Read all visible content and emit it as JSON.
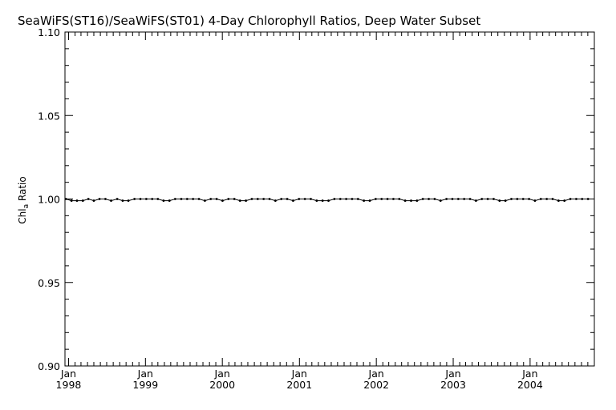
{
  "chart_data": {
    "type": "line",
    "title": "SeaWiFS(ST16)/SeaWiFS(ST01) 4-Day Chlorophyll Ratios, Deep Water Subset",
    "xlabel": "",
    "ylabel": "Chl",
    "ylabel_subscript": "a",
    "ylabel_suffix": " Ratio",
    "ylim": [
      0.9,
      1.1
    ],
    "yticks": [
      "0.90",
      "0.95",
      "1.00",
      "1.05",
      "1.10"
    ],
    "xlim": [
      "1997-12-15",
      "2004-11-01"
    ],
    "xticks": [
      {
        "month": "Jan",
        "year": "1998",
        "date": "1998-01-01"
      },
      {
        "month": "Jan",
        "year": "1999",
        "date": "1999-01-01"
      },
      {
        "month": "Jan",
        "year": "2000",
        "date": "2000-01-01"
      },
      {
        "month": "Jan",
        "year": "2001",
        "date": "2001-01-01"
      },
      {
        "month": "Jan",
        "year": "2002",
        "date": "2002-01-01"
      },
      {
        "month": "Jan",
        "year": "2003",
        "date": "2003-01-01"
      },
      {
        "month": "Jan",
        "year": "2004",
        "date": "2004-01-01"
      }
    ],
    "grid": false,
    "series": [
      {
        "x": [
          "1997-12-20",
          "1998-01-15",
          "1998-02-10",
          "1998-03-10",
          "1998-04-05",
          "1998-05-01",
          "1998-05-28",
          "1998-06-25",
          "1998-07-22",
          "1998-08-20",
          "1998-09-15",
          "1998-10-12",
          "1998-11-10",
          "1998-12-08",
          "1999-01-05",
          "1999-02-02",
          "1999-03-01",
          "1999-03-28",
          "1999-04-25",
          "1999-05-22",
          "1999-06-20",
          "1999-07-18",
          "1999-08-15",
          "1999-09-12",
          "1999-10-10",
          "1999-11-07",
          "1999-12-05",
          "2000-01-02",
          "2000-01-30",
          "2000-02-27",
          "2000-03-25",
          "2000-04-22",
          "2000-05-20",
          "2000-06-17",
          "2000-07-15",
          "2000-08-12",
          "2000-09-09",
          "2000-10-07",
          "2000-11-04",
          "2000-12-02",
          "2000-12-30",
          "2001-01-27",
          "2001-02-24",
          "2001-03-24",
          "2001-04-21",
          "2001-05-19",
          "2001-06-16",
          "2001-07-14",
          "2001-08-11",
          "2001-09-08",
          "2001-10-06",
          "2001-11-03",
          "2001-12-01",
          "2001-12-29",
          "2002-01-26",
          "2002-02-23",
          "2002-03-23",
          "2002-04-20",
          "2002-05-18",
          "2002-06-15",
          "2002-07-13",
          "2002-08-10",
          "2002-09-07",
          "2002-10-05",
          "2002-11-02",
          "2002-11-30",
          "2002-12-28",
          "2003-01-25",
          "2003-02-22",
          "2003-03-22",
          "2003-04-19",
          "2003-05-17",
          "2003-06-14",
          "2003-07-12",
          "2003-08-09",
          "2003-09-06",
          "2003-10-04",
          "2003-11-01",
          "2003-11-29",
          "2003-12-27",
          "2004-01-24",
          "2004-02-21",
          "2004-03-20",
          "2004-04-17",
          "2004-05-15",
          "2004-06-12",
          "2004-07-10",
          "2004-08-07",
          "2004-09-04",
          "2004-10-02"
        ],
        "y": [
          1.0,
          0.999,
          0.999,
          0.999,
          1.0,
          0.999,
          1.0,
          1.0,
          0.999,
          1.0,
          0.999,
          0.999,
          1.0,
          1.0,
          1.0,
          1.0,
          1.0,
          0.999,
          0.999,
          1.0,
          1.0,
          1.0,
          1.0,
          1.0,
          0.999,
          1.0,
          1.0,
          0.999,
          1.0,
          1.0,
          0.999,
          0.999,
          1.0,
          1.0,
          1.0,
          1.0,
          0.999,
          1.0,
          1.0,
          0.999,
          1.0,
          1.0,
          1.0,
          0.999,
          0.999,
          0.999,
          1.0,
          1.0,
          1.0,
          1.0,
          1.0,
          0.999,
          0.999,
          1.0,
          1.0,
          1.0,
          1.0,
          1.0,
          0.999,
          0.999,
          0.999,
          1.0,
          1.0,
          1.0,
          0.999,
          1.0,
          1.0,
          1.0,
          1.0,
          1.0,
          0.999,
          1.0,
          1.0,
          1.0,
          0.999,
          0.999,
          1.0,
          1.0,
          1.0,
          1.0,
          0.999,
          1.0,
          1.0,
          1.0,
          0.999,
          0.999,
          1.0,
          1.0,
          1.0,
          1.0
        ]
      }
    ]
  }
}
